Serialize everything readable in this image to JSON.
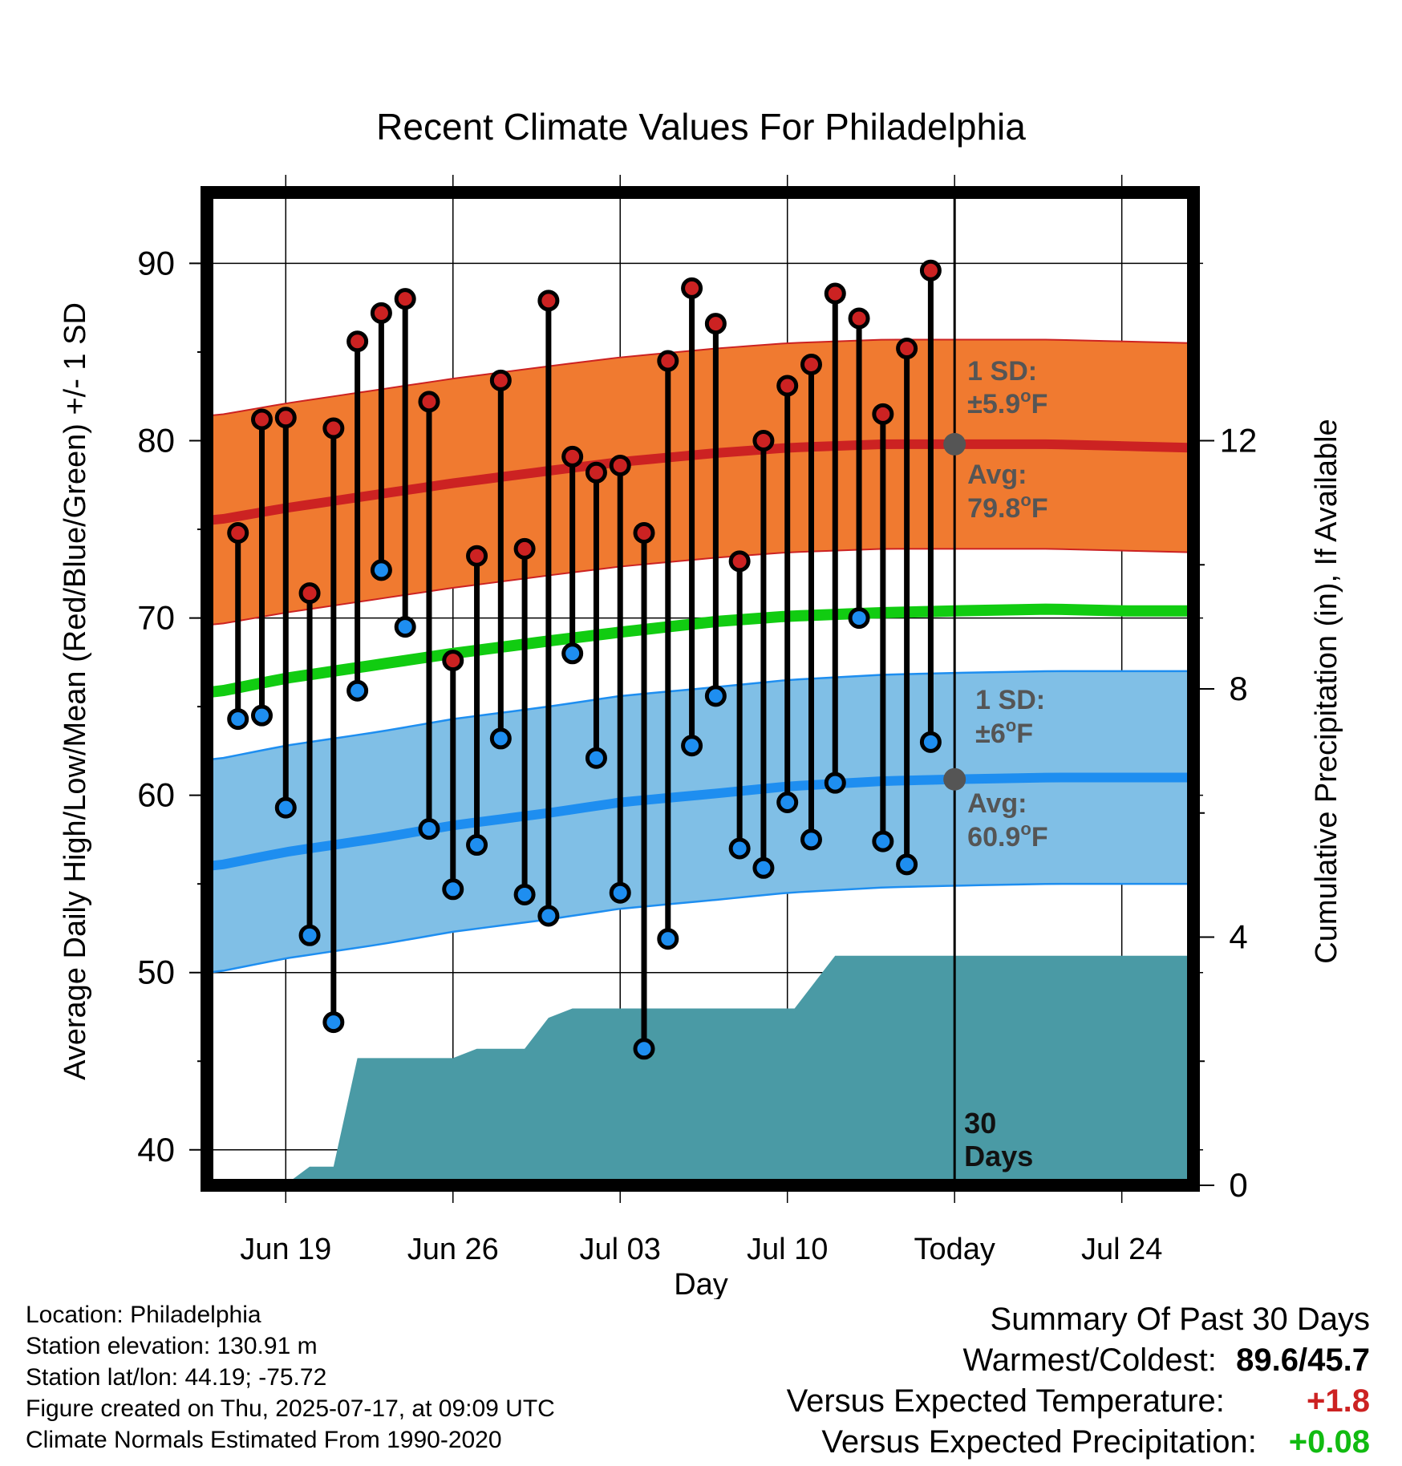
{
  "title": "Recent Climate Values For Philadelphia",
  "chart_data": {
    "type": "line",
    "title": "Recent Climate Values For Philadelphia",
    "xlabel": "Day",
    "ylabel": "Average Daily High/Low/Mean (Red/Blue/Green) +/- 1 SD",
    "y2label": "Cumulative Precipitation (in), If Available",
    "ylim": [
      38,
      94
    ],
    "y_ticks": [
      40,
      50,
      60,
      70,
      80,
      90
    ],
    "y2lim": [
      0,
      16
    ],
    "y2_ticks": [
      0,
      4,
      8,
      12
    ],
    "x_ticks": [
      {
        "day": 3,
        "label": "Jun 19"
      },
      {
        "day": 10,
        "label": "Jun 26"
      },
      {
        "day": 17,
        "label": "Jul 03"
      },
      {
        "day": 24,
        "label": "Jul 10"
      },
      {
        "day": 31,
        "label": "Today"
      },
      {
        "day": 38,
        "label": "Jul 24"
      }
    ],
    "xlim": [
      -0.3,
      41
    ],
    "today_day": 31,
    "window_label": "30 Days",
    "grid": true,
    "colors": {
      "high": "#cc2222",
      "high_band": "#f07a30",
      "low": "#1e8ef0",
      "low_band": "#80bfe6",
      "mean": "#11cc11",
      "precip": "#4a9aa5",
      "marker_today": "#555555"
    },
    "daily_high": [
      74.8,
      81.2,
      81.3,
      71.4,
      80.7,
      85.6,
      87.2,
      88.0,
      82.2,
      67.6,
      73.5,
      83.4,
      73.9,
      87.9,
      79.1,
      78.2,
      78.6,
      74.8,
      84.5,
      88.6,
      86.6,
      73.2,
      80.0,
      83.1,
      84.3,
      88.3,
      86.9,
      81.5,
      85.2,
      89.6
    ],
    "daily_low": [
      64.3,
      64.5,
      59.3,
      52.1,
      47.2,
      65.9,
      72.7,
      69.5,
      58.1,
      54.7,
      57.2,
      63.2,
      54.4,
      53.2,
      68.0,
      62.1,
      54.5,
      45.7,
      51.9,
      62.8,
      65.6,
      57.0,
      55.9,
      59.6,
      57.5,
      60.7,
      70.0,
      57.4,
      56.1,
      63.0
    ],
    "normal_days": [
      0,
      3,
      7,
      10,
      14,
      17,
      21,
      24,
      28,
      31,
      35,
      38,
      41
    ],
    "normal_high": [
      75.5,
      76.2,
      77.0,
      77.6,
      78.3,
      78.8,
      79.3,
      79.6,
      79.8,
      79.8,
      79.8,
      79.7,
      79.6
    ],
    "normal_high_sd": 5.9,
    "normal_low": [
      56.0,
      56.8,
      57.6,
      58.3,
      59.0,
      59.6,
      60.1,
      60.5,
      60.8,
      60.9,
      61.0,
      61.0,
      61.0
    ],
    "normal_low_sd": 6.0,
    "normal_mean": [
      65.8,
      66.6,
      67.4,
      68.0,
      68.7,
      69.2,
      69.8,
      70.1,
      70.3,
      70.4,
      70.5,
      70.4,
      70.4
    ],
    "precip_cumulative": [
      [
        0,
        0
      ],
      [
        3,
        0
      ],
      [
        3.3,
        0.1
      ],
      [
        4,
        0.3
      ],
      [
        5,
        0.3
      ],
      [
        6,
        2.05
      ],
      [
        10,
        2.05
      ],
      [
        11,
        2.2
      ],
      [
        13,
        2.2
      ],
      [
        14,
        2.7
      ],
      [
        15,
        2.85
      ],
      [
        24.3,
        2.85
      ],
      [
        26,
        3.7
      ],
      [
        41,
        3.7
      ]
    ],
    "annotations": {
      "high_sd_label": "1 SD:",
      "high_sd_value": "±5.9",
      "high_avg_label": "Avg:",
      "high_avg_value": "79.8",
      "low_sd_label": "1 SD:",
      "low_sd_value": "±6",
      "low_avg_label": "Avg:",
      "low_avg_value": "60.9",
      "deg_sup": "o",
      "unit": "F"
    }
  },
  "footer_left": {
    "location": "Location: Philadelphia",
    "elevation": "Station elevation: 130.91 m",
    "latlon": "Station lat/lon: 44.19; -75.72",
    "created": "Figure created on Thu, 2025-07-17, at 09:09 UTC",
    "normals": "Climate Normals Estimated From 1990-2020"
  },
  "footer_right": {
    "heading": "Summary Of Past 30 Days",
    "warmest_label": "Warmest/Coldest:",
    "warmest_value": "89.6/45.7",
    "temp_label": "Versus Expected Temperature:",
    "temp_value": "+1.8",
    "temp_color": "#cc2222",
    "precip_label": "Versus Expected Precipitation:",
    "precip_value": "+0.08",
    "precip_color": "#11bb11"
  }
}
